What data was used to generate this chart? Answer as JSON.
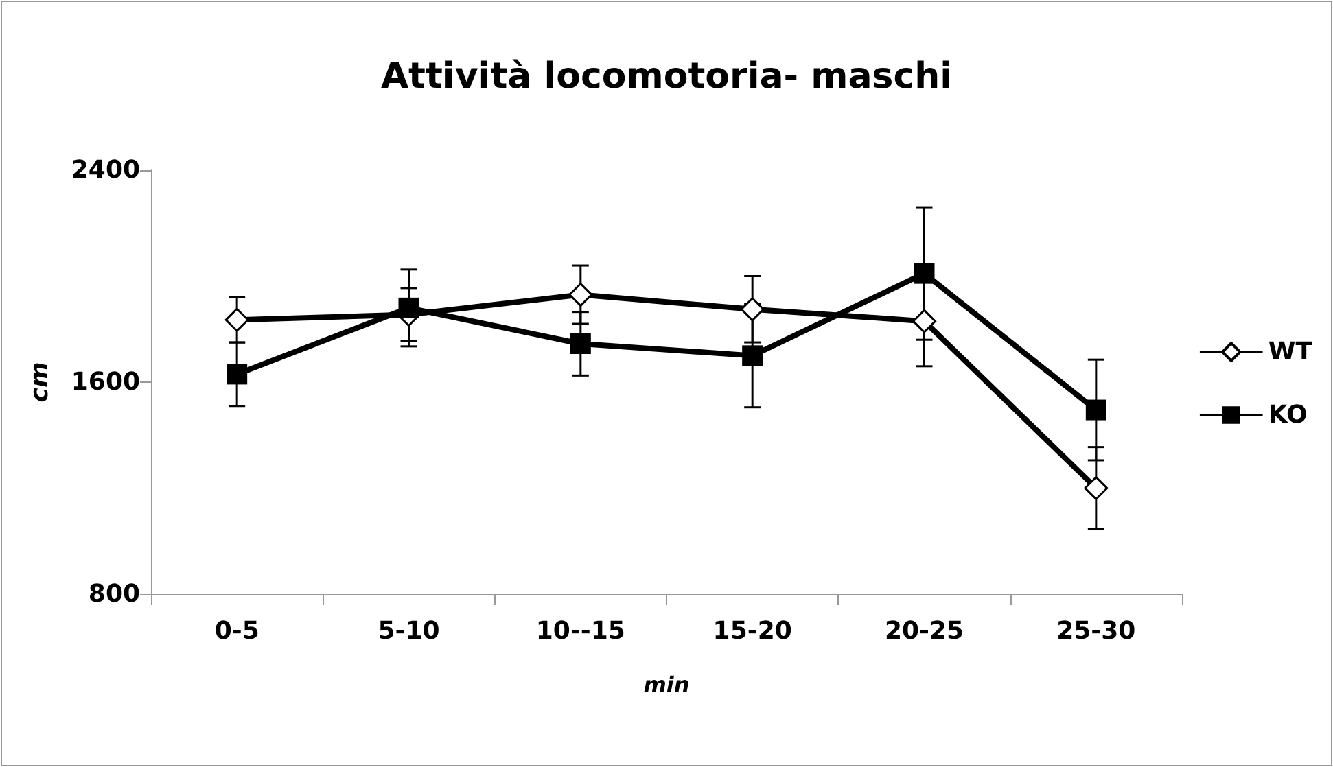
{
  "chart_data": {
    "type": "line",
    "title": "Attività locomotoria- maschi",
    "xlabel": "min",
    "ylabel": "cm",
    "categories": [
      "0-5",
      "5-10",
      "10--15",
      "15-20",
      "20-25",
      "25-30"
    ],
    "series": [
      {
        "name": "WT",
        "color": "#000000",
        "marker": "diamond",
        "values": [
          1835,
          1855,
          1930,
          1875,
          1830,
          1200
        ],
        "errors": [
          85,
          100,
          110,
          125,
          170,
          155
        ]
      },
      {
        "name": "KO",
        "color": "#000000",
        "marker": "square",
        "values": [
          1630,
          1880,
          1745,
          1700,
          2010,
          1495
        ],
        "errors": [
          120,
          145,
          120,
          195,
          250,
          190
        ]
      }
    ],
    "ylim": [
      800,
      2400
    ],
    "yticks": [
      800,
      1600,
      2400
    ],
    "grid": false,
    "legend": "right",
    "line_style": "solid"
  }
}
